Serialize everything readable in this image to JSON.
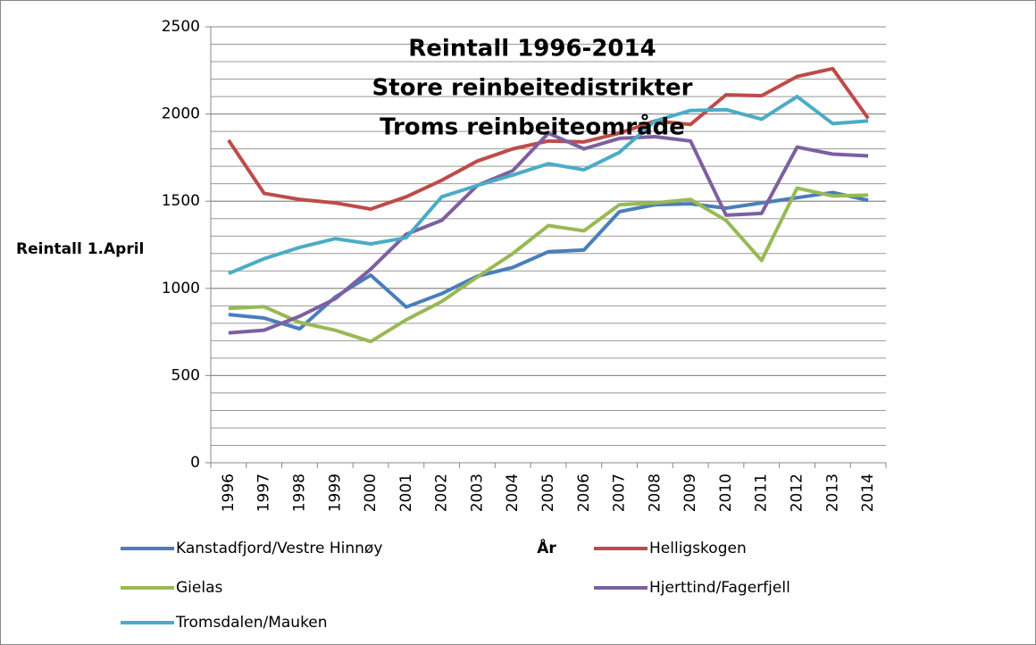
{
  "chart_data": {
    "type": "line",
    "title": [
      "Reintall 1996-2014",
      "Store reinbeitedistrikter",
      "Troms reinbeiteområde"
    ],
    "y_label": "Reintall 1.April",
    "x_label": "År",
    "categories": [
      "1996",
      "1997",
      "1998",
      "1999",
      "2000",
      "2001",
      "2002",
      "2003",
      "2004",
      "2005",
      "2006",
      "2007",
      "2008",
      "2009",
      "2010",
      "2011",
      "2012",
      "2013",
      "2014"
    ],
    "series": [
      {
        "name": "Kanstadfjord/Vestre Hinnøy",
        "color": "#4a7ebb",
        "values": [
          850,
          830,
          768,
          950,
          1076,
          893,
          970,
          1070,
          1120,
          1210,
          1220,
          1440,
          1480,
          1485,
          1460,
          1490,
          1520,
          1550,
          1505
        ]
      },
      {
        "name": "Helligskogen",
        "color": "#be4b48",
        "values": [
          1850,
          1545,
          1510,
          1490,
          1455,
          1525,
          1620,
          1730,
          1800,
          1845,
          1840,
          1890,
          1960,
          1940,
          2110,
          2105,
          2215,
          2260,
          1975
        ]
      },
      {
        "name": "Gielas",
        "color": "#98b954",
        "values": [
          885,
          895,
          805,
          760,
          695,
          820,
          925,
          1065,
          1200,
          1360,
          1330,
          1480,
          1490,
          1510,
          1390,
          1160,
          1575,
          1530,
          1535
        ]
      },
      {
        "name": "Hjerttind/Fagerfjell",
        "color": "#7d60a0",
        "values": [
          745,
          760,
          840,
          940,
          1110,
          1310,
          1390,
          1590,
          1675,
          1890,
          1800,
          1860,
          1870,
          1845,
          1420,
          1430,
          1810,
          1770,
          1760
        ]
      },
      {
        "name": "Tromsdalen/Mauken",
        "color": "#4bacc6",
        "values": [
          1085,
          1170,
          1235,
          1285,
          1255,
          1290,
          1525,
          1590,
          1650,
          1715,
          1680,
          1780,
          1960,
          2020,
          2025,
          1970,
          2100,
          1945,
          1960
        ]
      }
    ],
    "ylim": [
      0,
      2500
    ],
    "yticks": [
      0,
      500,
      1000,
      1500,
      2000,
      2500
    ],
    "grid": true,
    "minor_grid_step": 100,
    "legend": "bottom"
  }
}
